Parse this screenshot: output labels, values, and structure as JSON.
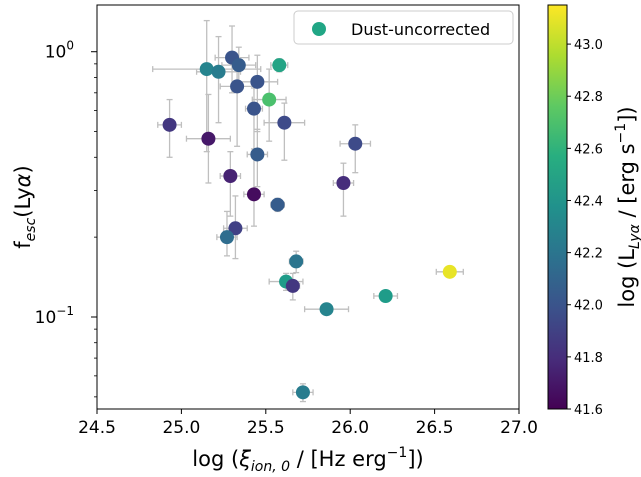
{
  "chart_data": {
    "type": "scatter",
    "xlabel": {
      "prefix": "log (",
      "xi": "ξ",
      "xi_sub": "ion, 0",
      "middle": " / [Hz erg",
      "sup": "−1",
      "suffix": "])"
    },
    "ylabel": {
      "main": "f",
      "sub": "esc",
      "suffix_open": "(Ly",
      "alpha": "α",
      "suffix_close": ")"
    },
    "colorbar_label": {
      "prefix": "log (L",
      "sub": "Lyα",
      "middle": " / [erg s",
      "sup": "−1",
      "suffix": "])"
    },
    "xlim": [
      24.5,
      27.0
    ],
    "ylim": [
      0.045,
      1.5
    ],
    "yscale": "log",
    "xticks": [
      24.5,
      25.0,
      25.5,
      26.0,
      26.5,
      27.0
    ],
    "xtick_labels": [
      "24.5",
      "25.0",
      "25.5",
      "26.0",
      "26.5",
      "27.0"
    ],
    "yticks": [
      0.1,
      1.0
    ],
    "ytick_labels": [
      {
        "base": "10",
        "exp": "−1"
      },
      {
        "base": "10",
        "exp": "0"
      }
    ],
    "colormap": "viridis",
    "clim": [
      41.6,
      43.15
    ],
    "cticks": [
      41.6,
      41.8,
      42.0,
      42.2,
      42.4,
      42.6,
      42.8,
      43.0
    ],
    "ctick_labels": [
      "41.6",
      "41.8",
      "42.0",
      "42.2",
      "42.4",
      "42.6",
      "42.8",
      "43.0"
    ],
    "legend": {
      "label": "Dust-uncorrected",
      "marker_color": "#21a685",
      "position": "top-right"
    },
    "error_bar_color": "#bfbfbf",
    "points": [
      {
        "x": 25.15,
        "y": 0.86,
        "xerr": 0.32,
        "yerr": [
          0.44,
          0.45
        ],
        "c": 42.3
      },
      {
        "x": 25.22,
        "y": 0.84,
        "xerr": 0.13,
        "yerr": [
          0.3,
          0.3
        ],
        "c": 42.25
      },
      {
        "x": 25.3,
        "y": 0.95,
        "xerr": 0.1,
        "yerr": [
          0.25,
          0.3
        ],
        "c": 42.0
      },
      {
        "x": 25.34,
        "y": 0.89,
        "xerr": 0.1,
        "yerr": [
          0.12,
          0.15
        ],
        "c": 42.05
      },
      {
        "x": 25.33,
        "y": 0.74,
        "xerr": 0.1,
        "yerr": [
          0.3,
          0.2
        ],
        "c": 42.0
      },
      {
        "x": 25.45,
        "y": 0.77,
        "xerr": 0.12,
        "yerr": [
          0.27,
          0.2
        ],
        "c": 42.0
      },
      {
        "x": 25.58,
        "y": 0.89,
        "xerr": 0.05,
        "yerr": [
          0.05,
          0.05
        ],
        "c": 42.5
      },
      {
        "x": 25.52,
        "y": 0.66,
        "xerr": 0.1,
        "yerr": [
          0.2,
          0.2
        ],
        "c": 42.7
      },
      {
        "x": 25.43,
        "y": 0.61,
        "xerr": 0.05,
        "yerr": [
          0.18,
          0.12
        ],
        "c": 42.0
      },
      {
        "x": 25.61,
        "y": 0.54,
        "xerr": 0.12,
        "yerr": [
          0.15,
          0.1
        ],
        "c": 41.95
      },
      {
        "x": 24.93,
        "y": 0.53,
        "xerr": 0.07,
        "yerr": [
          0.13,
          0.13
        ],
        "c": 41.85
      },
      {
        "x": 25.16,
        "y": 0.47,
        "xerr": 0.13,
        "yerr": [
          0.15,
          0.22
        ],
        "c": 41.7
      },
      {
        "x": 26.03,
        "y": 0.45,
        "xerr": 0.09,
        "yerr": [
          0.1,
          0.08
        ],
        "c": 41.95
      },
      {
        "x": 25.45,
        "y": 0.41,
        "xerr": 0.06,
        "yerr": [
          0.1,
          0.1
        ],
        "c": 42.05
      },
      {
        "x": 25.29,
        "y": 0.34,
        "xerr": 0.06,
        "yerr": [
          0.1,
          0.08
        ],
        "c": 41.75
      },
      {
        "x": 25.96,
        "y": 0.32,
        "xerr": 0.06,
        "yerr": [
          0.08,
          0.06
        ],
        "c": 41.8
      },
      {
        "x": 25.43,
        "y": 0.29,
        "xerr": 0.06,
        "yerr": [
          0.07,
          0.13
        ],
        "c": 41.65
      },
      {
        "x": 25.57,
        "y": 0.265,
        "xerr": 0.04,
        "yerr": [
          0.015,
          0.015
        ],
        "c": 42.05
      },
      {
        "x": 25.32,
        "y": 0.216,
        "xerr": 0.07,
        "yerr": [
          0.05,
          0.07
        ],
        "c": 41.9
      },
      {
        "x": 25.27,
        "y": 0.2,
        "xerr": 0.06,
        "yerr": [
          0.03,
          0.05
        ],
        "c": 42.15
      },
      {
        "x": 25.68,
        "y": 0.162,
        "xerr": 0.04,
        "yerr": [
          0.015,
          0.015
        ],
        "c": 42.2
      },
      {
        "x": 25.62,
        "y": 0.136,
        "xerr": 0.1,
        "yerr": [
          0.01,
          0.01
        ],
        "c": 42.45
      },
      {
        "x": 25.66,
        "y": 0.131,
        "xerr": 0.04,
        "yerr": [
          0.015,
          0.015
        ],
        "c": 41.85
      },
      {
        "x": 26.59,
        "y": 0.148,
        "xerr": 0.08,
        "yerr": [
          0.005,
          0.005
        ],
        "c": 43.1
      },
      {
        "x": 26.21,
        "y": 0.12,
        "xerr": 0.07,
        "yerr": [
          0.005,
          0.005
        ],
        "c": 42.45
      },
      {
        "x": 25.86,
        "y": 0.107,
        "xerr": 0.13,
        "yerr": [
          0.005,
          0.005
        ],
        "c": 42.3
      },
      {
        "x": 25.72,
        "y": 0.052,
        "xerr": 0.06,
        "yerr": [
          0.004,
          0.004
        ],
        "c": 42.25
      }
    ]
  }
}
